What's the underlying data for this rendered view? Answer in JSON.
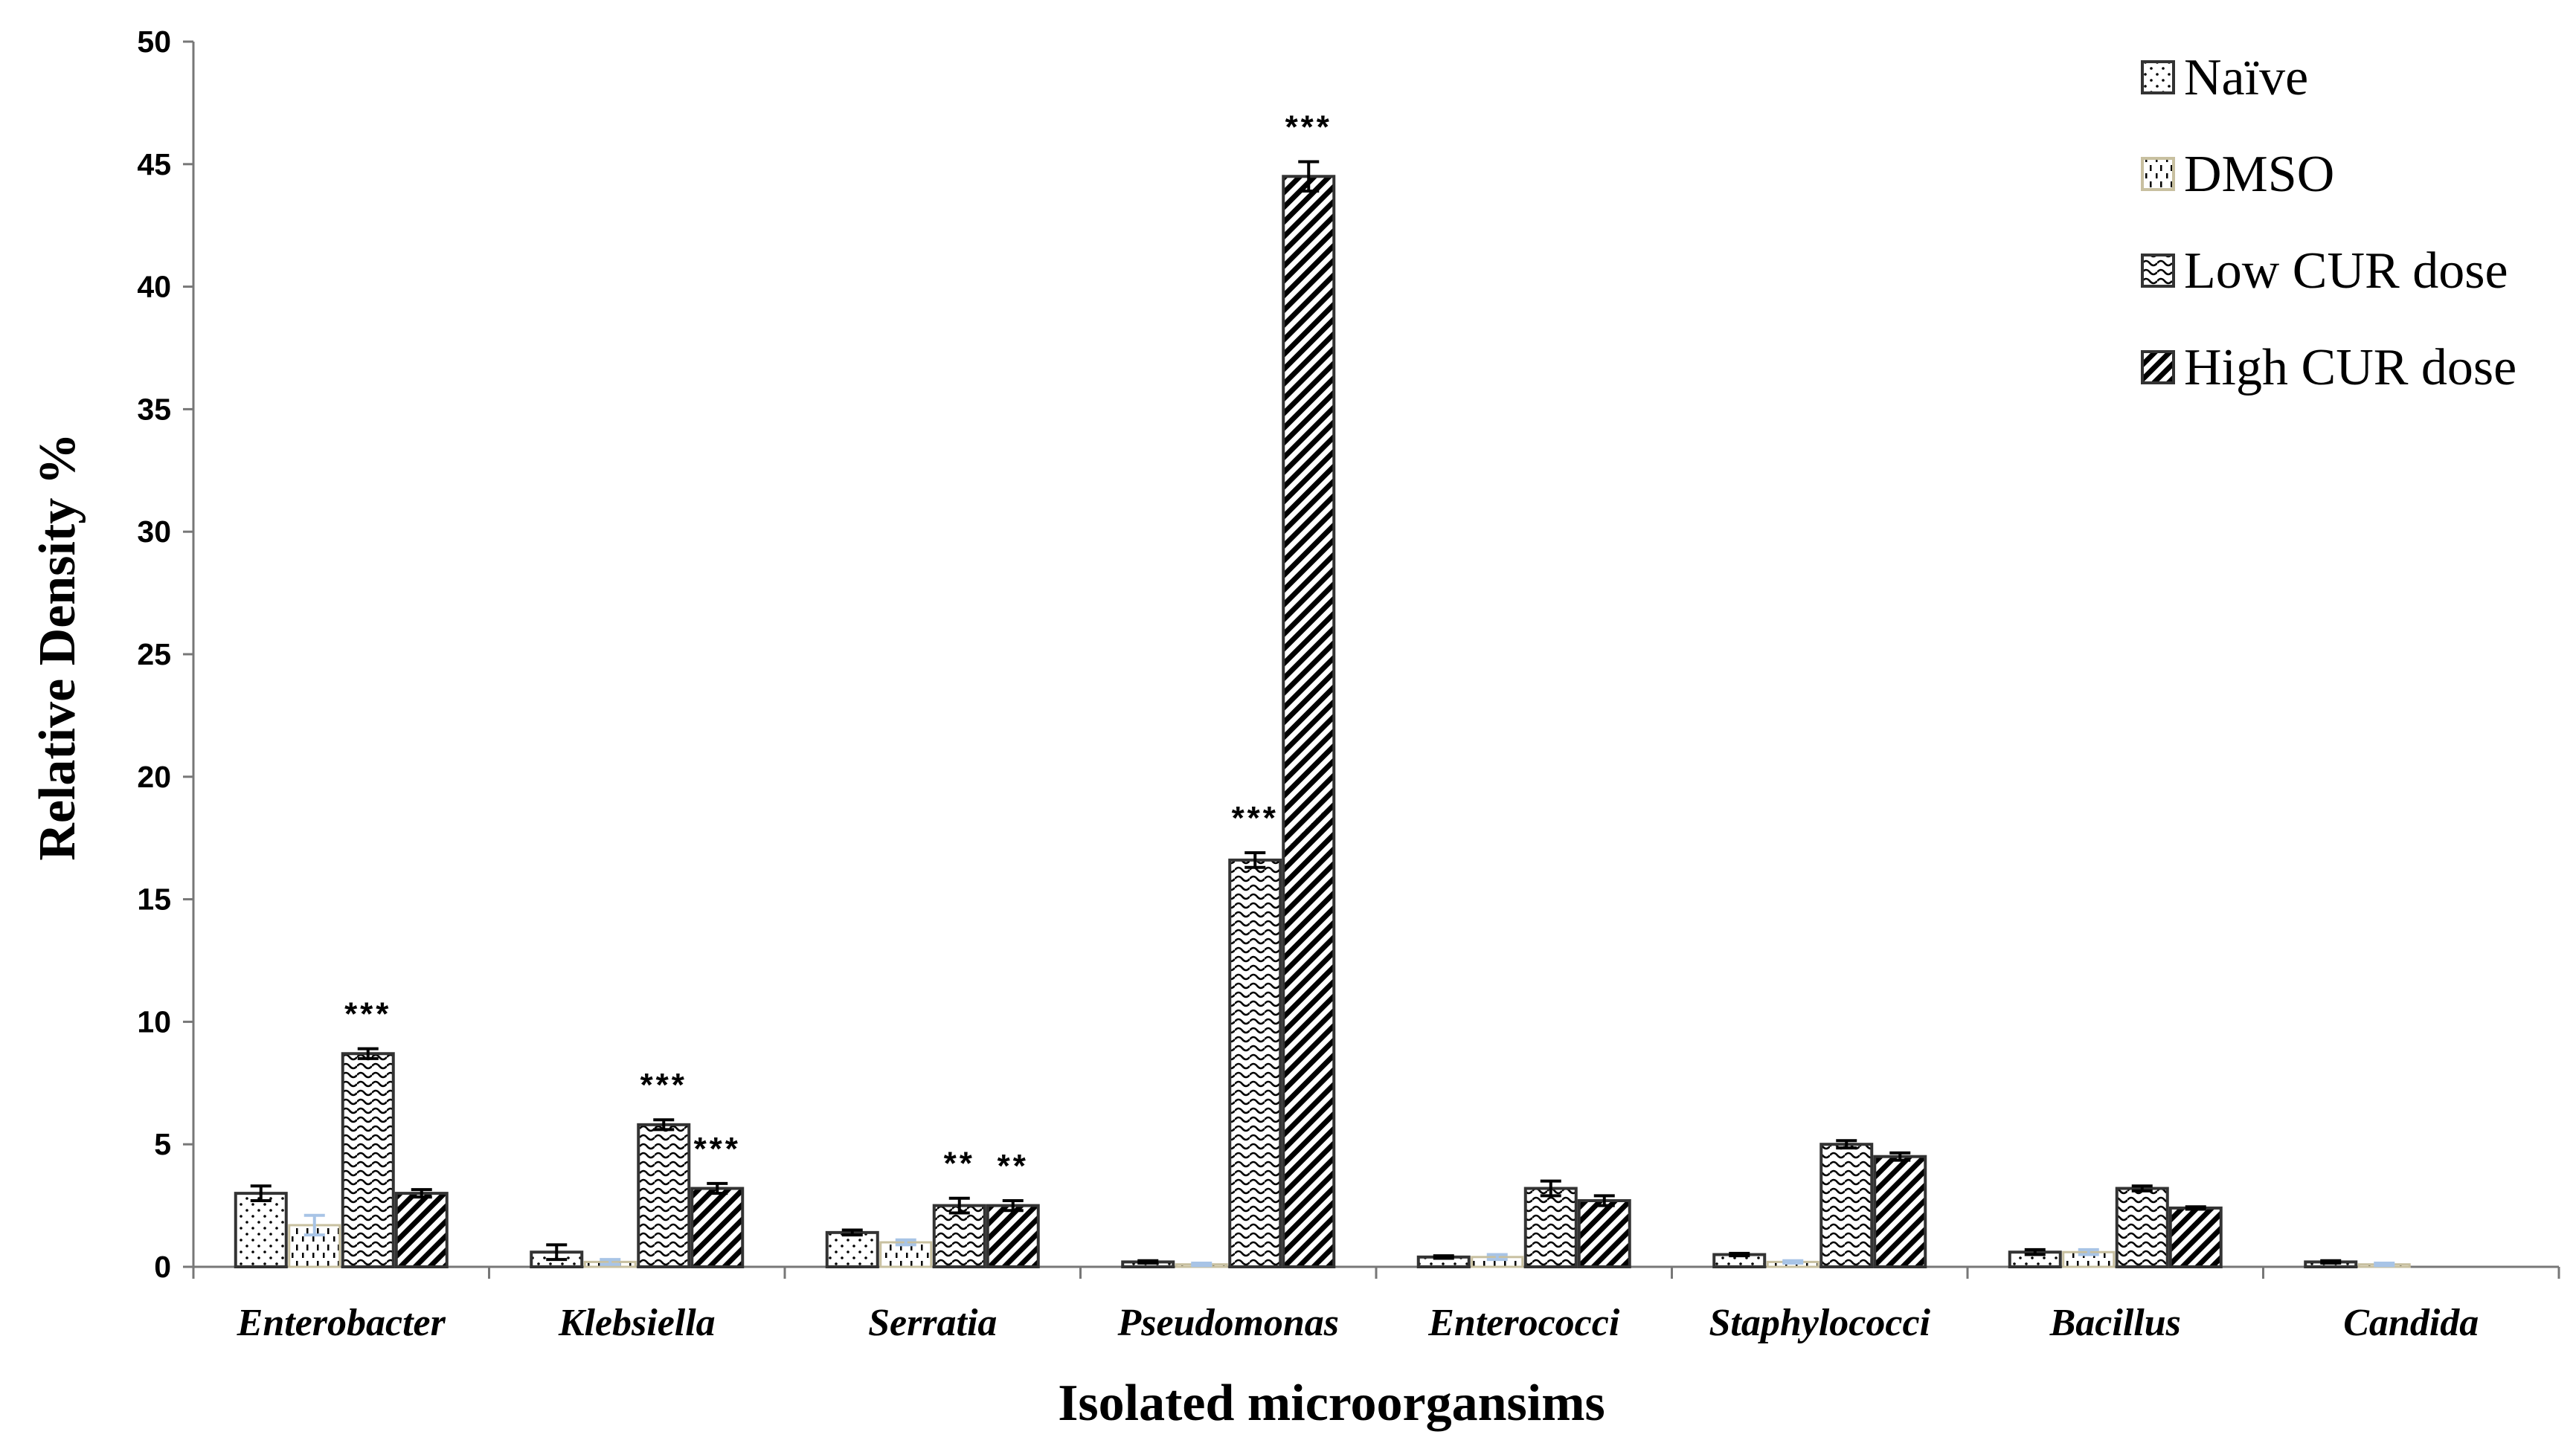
{
  "chart_data": {
    "type": "bar",
    "title": "",
    "xlabel": "Isolated microorgansims",
    "ylabel": "Relative Density %",
    "ylim": [
      0,
      50
    ],
    "yticks": [
      0,
      5,
      10,
      15,
      20,
      25,
      30,
      35,
      40,
      45,
      50
    ],
    "grid": false,
    "legend_position": "top-right",
    "categories": [
      "Enterobacter",
      "Klebsiella",
      "Serratia",
      "Pseudomonas",
      "Enterococci",
      "Staphylococci",
      "Bacillus",
      "Candida"
    ],
    "series": [
      {
        "name": "Naïve",
        "pattern": "dots",
        "values": [
          3.0,
          0.6,
          1.4,
          0.2,
          0.4,
          0.5,
          0.6,
          0.2
        ],
        "errors": [
          0.3,
          0.3,
          0.1,
          0.05,
          0.05,
          0.05,
          0.1,
          0.05
        ],
        "significance": [
          "",
          "",
          "",
          "",
          "",
          "",
          "",
          ""
        ]
      },
      {
        "name": "DMSO",
        "pattern": "dashes",
        "values": [
          1.7,
          0.2,
          1.0,
          0.1,
          0.4,
          0.2,
          0.6,
          0.1
        ],
        "errors": [
          0.4,
          0.1,
          0.1,
          0.05,
          0.1,
          0.05,
          0.1,
          0.05
        ],
        "significance": [
          "",
          "",
          "",
          "",
          "",
          "",
          "",
          ""
        ]
      },
      {
        "name": "Low CUR dose",
        "pattern": "waves",
        "values": [
          8.7,
          5.8,
          2.5,
          16.6,
          3.2,
          5.0,
          3.2,
          0.0
        ],
        "errors": [
          0.2,
          0.2,
          0.3,
          0.3,
          0.3,
          0.15,
          0.1,
          0
        ],
        "significance": [
          "***",
          "***",
          "**",
          "***",
          "",
          "",
          "",
          ""
        ]
      },
      {
        "name": "High CUR dose",
        "pattern": "diagonal",
        "values": [
          3.0,
          3.2,
          2.5,
          44.5,
          2.7,
          4.5,
          2.4,
          0.0
        ],
        "errors": [
          0.15,
          0.2,
          0.2,
          0.6,
          0.2,
          0.15,
          0.05,
          0
        ],
        "significance": [
          "",
          "***",
          "**",
          "***",
          "",
          "",
          "",
          ""
        ]
      }
    ]
  }
}
